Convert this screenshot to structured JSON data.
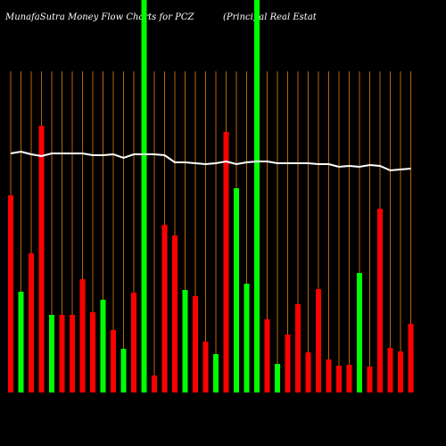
{
  "chart_data": {
    "type": "bar",
    "title": "MunafaSutra  Money Flow  Charts for PCZ",
    "subtitle": "(Principal Real Estat",
    "categories": [
      null,
      null,
      null,
      null,
      null,
      null,
      null,
      null,
      null,
      null,
      null,
      null,
      null,
      null,
      null,
      null,
      null,
      null,
      null,
      null,
      null,
      null,
      null,
      null,
      null,
      null,
      null,
      null,
      null,
      null,
      null,
      null,
      null,
      null,
      null,
      null,
      null,
      null,
      null,
      null
    ],
    "values": [
      221,
      113,
      156,
      299,
      87,
      87,
      87,
      127,
      90,
      104,
      70,
      49,
      112,
      440,
      19,
      188,
      176,
      115,
      108,
      57,
      43,
      292,
      229,
      122,
      440,
      82,
      32,
      65,
      99,
      45,
      116,
      37,
      30,
      31,
      134,
      29,
      206,
      50,
      46,
      77
    ],
    "colors": [
      "#ff0000",
      "#00ff00",
      "#ff0000",
      "#ff0000",
      "#00ff00",
      "#ff0000",
      "#ff0000",
      "#ff0000",
      "#ff0000",
      "#00ff00",
      "#ff0000",
      "#00ff00",
      "#ff0000",
      "#00ff00",
      "#ff0000",
      "#ff0000",
      "#ff0000",
      "#00ff00",
      "#ff0000",
      "#ff0000",
      "#00ff00",
      "#ff0000",
      "#00ff00",
      "#00ff00",
      "#00ff00",
      "#ff0000",
      "#00ff00",
      "#ff0000",
      "#ff0000",
      "#ff0000",
      "#ff0000",
      "#ff0000",
      "#ff0000",
      "#ff0000",
      "#00ff00",
      "#ff0000",
      "#ff0000",
      "#ff0000",
      "#ff0000",
      "#ff0000"
    ],
    "line": {
      "color": "#ffffff",
      "values": [
        268,
        270,
        267,
        265,
        268,
        268,
        268,
        268,
        266,
        266,
        267,
        263,
        267,
        267,
        267,
        266,
        258,
        258,
        257,
        256,
        257,
        259,
        256,
        258,
        259,
        259,
        257,
        257,
        257,
        257,
        256,
        256,
        253,
        254,
        253,
        255,
        254,
        249,
        250,
        251
      ]
    },
    "grid": true,
    "grid_color": "#b8650f"
  }
}
